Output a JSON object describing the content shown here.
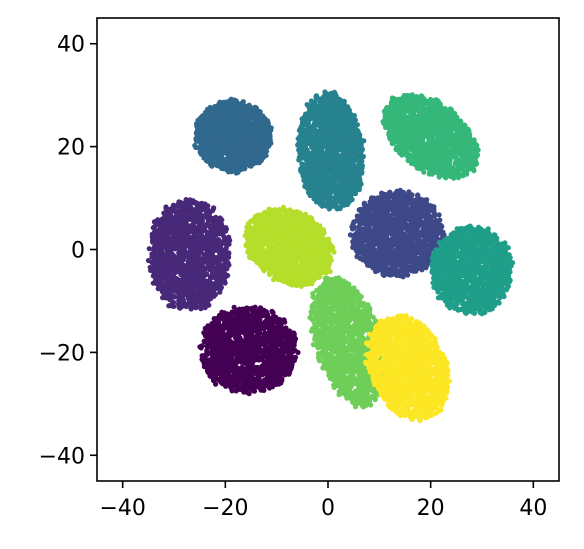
{
  "chart_data": {
    "type": "scatter",
    "title": "",
    "xlabel": "",
    "ylabel": "",
    "xlim": [
      -45,
      45
    ],
    "ylim": [
      -45,
      45
    ],
    "x_ticks": [
      -40,
      -20,
      0,
      20,
      40
    ],
    "y_ticks": [
      -40,
      -20,
      0,
      20,
      40
    ],
    "x_tick_labels": [
      "−40",
      "−20",
      "0",
      "20",
      "40"
    ],
    "y_tick_labels": [
      "−40",
      "−20",
      "0",
      "20",
      "40"
    ],
    "grid": false,
    "legend": "none",
    "clusters": [
      {
        "cx": -18.5,
        "cy": 22.0,
        "rx": 7.5,
        "ry": 7.0,
        "rot": -5,
        "color": "#31688e"
      },
      {
        "cx": 0.5,
        "cy": 19.0,
        "rx": 6.5,
        "ry": 11.5,
        "rot": 5,
        "color": "#26828e"
      },
      {
        "cx": 20.0,
        "cy": 22.0,
        "rx": 10.5,
        "ry": 6.5,
        "rot": -38,
        "color": "#35b779"
      },
      {
        "cx": -27.0,
        "cy": -1.0,
        "rx": 8.0,
        "ry": 11.0,
        "rot": 0,
        "color": "#482878"
      },
      {
        "cx": -7.5,
        "cy": 0.5,
        "rx": 9.0,
        "ry": 7.0,
        "rot": -30,
        "color": "#b5de2b"
      },
      {
        "cx": 13.5,
        "cy": 3.0,
        "rx": 9.0,
        "ry": 8.5,
        "rot": 0,
        "color": "#3e4989"
      },
      {
        "cx": 28.0,
        "cy": -4.0,
        "rx": 8.0,
        "ry": 8.5,
        "rot": 0,
        "color": "#1f9e89"
      },
      {
        "cx": -15.5,
        "cy": -19.5,
        "rx": 9.5,
        "ry": 8.5,
        "rot": 0,
        "color": "#440154"
      },
      {
        "cx": 4.0,
        "cy": -18.0,
        "rx": 6.5,
        "ry": 13.0,
        "rot": 18,
        "color": "#6ece58"
      },
      {
        "cx": 15.5,
        "cy": -23.0,
        "rx": 7.5,
        "ry": 10.5,
        "rot": 25,
        "color": "#fde725"
      }
    ]
  }
}
